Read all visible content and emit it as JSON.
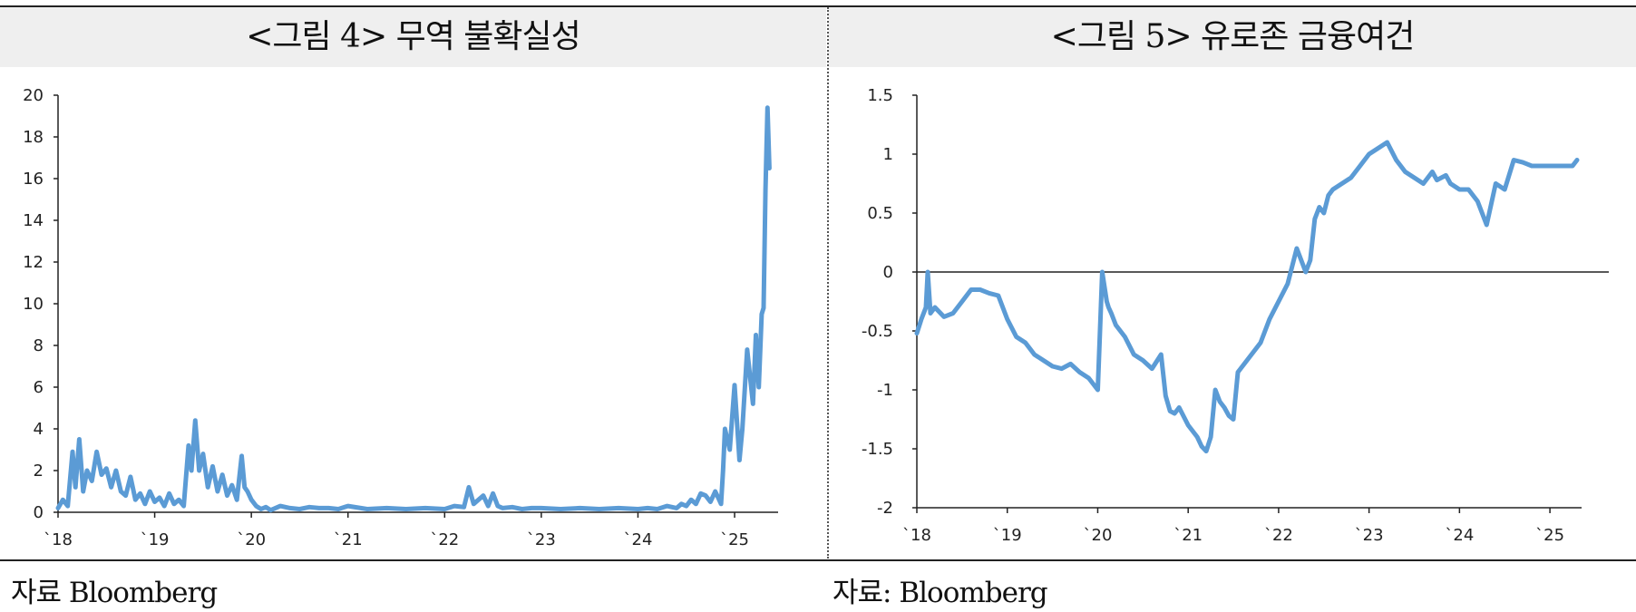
{
  "panels": [
    {
      "title": "<그림 4> 무역 불확실성",
      "source": "자료 Bloomberg"
    },
    {
      "title": "<그림 5> 유로존 금융여건",
      "source": "자료: Bloomberg"
    }
  ],
  "colors": {
    "series": "#5b9bd5",
    "axis": "#222222",
    "band": "#efefef"
  },
  "chart_data": [
    {
      "type": "line",
      "title": "<그림 4> 무역 불확실성",
      "xlabel": "",
      "ylabel": "",
      "x_tick_labels": [
        "`18",
        "`19",
        "`20",
        "`21",
        "`22",
        "`23",
        "`24",
        "`25"
      ],
      "x_tick_values": [
        2018,
        2019,
        2020,
        2021,
        2022,
        2023,
        2024,
        2025
      ],
      "y_ticks": [
        0,
        2,
        4,
        6,
        8,
        10,
        12,
        14,
        16,
        18,
        20
      ],
      "xlim": [
        2018,
        2025.45
      ],
      "ylim": [
        0,
        20
      ],
      "grid": false,
      "series": [
        {
          "x": [
            2018.0,
            2018.05,
            2018.1,
            2018.15,
            2018.18,
            2018.22,
            2018.26,
            2018.3,
            2018.35,
            2018.4,
            2018.45,
            2018.5,
            2018.55,
            2018.6,
            2018.65,
            2018.7,
            2018.75,
            2018.8,
            2018.85,
            2018.9,
            2018.95,
            2019.0,
            2019.05,
            2019.1,
            2019.15,
            2019.2,
            2019.25,
            2019.3,
            2019.35,
            2019.38,
            2019.42,
            2019.46,
            2019.5,
            2019.55,
            2019.6,
            2019.65,
            2019.7,
            2019.75,
            2019.8,
            2019.85,
            2019.9,
            2019.93,
            2019.96,
            2020.0,
            2020.05,
            2020.1,
            2020.15,
            2020.2,
            2020.3,
            2020.4,
            2020.5,
            2020.6,
            2020.7,
            2020.8,
            2020.9,
            2021.0,
            2021.2,
            2021.4,
            2021.6,
            2021.8,
            2022.0,
            2022.1,
            2022.2,
            2022.25,
            2022.3,
            2022.4,
            2022.45,
            2022.5,
            2022.55,
            2022.6,
            2022.7,
            2022.8,
            2022.9,
            2023.0,
            2023.2,
            2023.4,
            2023.6,
            2023.8,
            2024.0,
            2024.1,
            2024.2,
            2024.3,
            2024.4,
            2024.45,
            2024.5,
            2024.55,
            2024.6,
            2024.65,
            2024.7,
            2024.75,
            2024.8,
            2024.84,
            2024.86,
            2024.88,
            2024.9,
            2024.95,
            2025.0,
            2025.05,
            2025.08,
            2025.1,
            2025.13,
            2025.16,
            2025.19,
            2025.22,
            2025.25,
            2025.28,
            2025.3,
            2025.32,
            2025.34,
            2025.36
          ],
          "y": [
            0.2,
            0.6,
            0.3,
            2.9,
            1.2,
            3.5,
            1.0,
            2.0,
            1.5,
            2.9,
            1.8,
            2.1,
            1.2,
            2.0,
            1.0,
            0.8,
            1.7,
            0.6,
            0.9,
            0.4,
            1.0,
            0.5,
            0.7,
            0.3,
            0.9,
            0.4,
            0.6,
            0.3,
            3.2,
            2.0,
            4.4,
            2.0,
            2.8,
            1.2,
            2.2,
            1.0,
            1.8,
            0.8,
            1.3,
            0.6,
            2.7,
            1.2,
            1.0,
            0.6,
            0.3,
            0.15,
            0.25,
            0.1,
            0.3,
            0.2,
            0.15,
            0.25,
            0.2,
            0.2,
            0.15,
            0.3,
            0.15,
            0.2,
            0.15,
            0.2,
            0.15,
            0.3,
            0.25,
            1.2,
            0.4,
            0.8,
            0.3,
            0.9,
            0.3,
            0.2,
            0.25,
            0.15,
            0.2,
            0.2,
            0.15,
            0.2,
            0.15,
            0.2,
            0.15,
            0.2,
            0.15,
            0.3,
            0.2,
            0.4,
            0.3,
            0.6,
            0.4,
            0.9,
            0.8,
            0.5,
            1.0,
            0.6,
            0.4,
            2.0,
            4.0,
            3.0,
            6.1,
            2.5,
            4.0,
            5.5,
            7.8,
            6.5,
            5.2,
            8.5,
            6.0,
            9.5,
            9.8,
            15.5,
            19.4,
            16.5
          ]
        }
      ]
    },
    {
      "type": "line",
      "title": "<그림 5> 유로존 금융여건",
      "xlabel": "",
      "ylabel": "",
      "x_tick_labels": [
        "`18",
        "`19",
        "`20",
        "`21",
        "`22",
        "`23",
        "`24",
        "`25"
      ],
      "x_tick_values": [
        2018,
        2019,
        2020,
        2021,
        2022,
        2023,
        2024,
        2025
      ],
      "y_tick_labels": [
        "1.5",
        "1",
        "0.5",
        "0",
        "-0.5",
        "-1",
        "-1.5",
        "-2"
      ],
      "y_ticks": [
        1.5,
        1,
        0.5,
        0,
        -0.5,
        -1,
        -1.5,
        -2
      ],
      "xlim": [
        2018,
        2025.35
      ],
      "ylim": [
        -2,
        1.5
      ],
      "zero_line": true,
      "grid": false,
      "series": [
        {
          "x": [
            2018.0,
            2018.05,
            2018.1,
            2018.12,
            2018.15,
            2018.2,
            2018.3,
            2018.4,
            2018.5,
            2018.6,
            2018.7,
            2018.8,
            2018.9,
            2019.0,
            2019.1,
            2019.2,
            2019.3,
            2019.4,
            2019.5,
            2019.6,
            2019.7,
            2019.8,
            2019.9,
            2020.0,
            2020.05,
            2020.1,
            2020.12,
            2020.15,
            2020.2,
            2020.3,
            2020.4,
            2020.5,
            2020.6,
            2020.7,
            2020.75,
            2020.8,
            2020.85,
            2020.9,
            2021.0,
            2021.1,
            2021.15,
            2021.2,
            2021.25,
            2021.3,
            2021.35,
            2021.4,
            2021.45,
            2021.5,
            2021.55,
            2021.6,
            2021.65,
            2021.7,
            2021.8,
            2021.9,
            2022.0,
            2022.1,
            2022.2,
            2022.3,
            2022.35,
            2022.4,
            2022.45,
            2022.5,
            2022.55,
            2022.6,
            2022.7,
            2022.8,
            2022.9,
            2023.0,
            2023.1,
            2023.2,
            2023.3,
            2023.4,
            2023.5,
            2023.6,
            2023.7,
            2023.75,
            2023.8,
            2023.85,
            2023.9,
            2024.0,
            2024.1,
            2024.2,
            2024.3,
            2024.4,
            2024.5,
            2024.6,
            2024.7,
            2024.8,
            2024.9,
            2025.0,
            2025.05,
            2025.1,
            2025.15,
            2025.2,
            2025.25,
            2025.3
          ],
          "y": [
            -0.52,
            -0.4,
            -0.3,
            0.0,
            -0.35,
            -0.3,
            -0.38,
            -0.35,
            -0.25,
            -0.15,
            -0.15,
            -0.18,
            -0.2,
            -0.4,
            -0.55,
            -0.6,
            -0.7,
            -0.75,
            -0.8,
            -0.82,
            -0.78,
            -0.85,
            -0.9,
            -1.0,
            0.0,
            -0.25,
            -0.3,
            -0.35,
            -0.45,
            -0.55,
            -0.7,
            -0.75,
            -0.82,
            -0.7,
            -1.05,
            -1.18,
            -1.2,
            -1.15,
            -1.3,
            -1.4,
            -1.48,
            -1.52,
            -1.4,
            -1.0,
            -1.1,
            -1.15,
            -1.22,
            -1.25,
            -0.85,
            -0.8,
            -0.75,
            -0.7,
            -0.6,
            -0.4,
            -0.25,
            -0.1,
            0.2,
            0.0,
            0.1,
            0.45,
            0.55,
            0.5,
            0.65,
            0.7,
            0.75,
            0.8,
            0.9,
            1.0,
            1.05,
            1.1,
            0.95,
            0.85,
            0.8,
            0.75,
            0.85,
            0.78,
            0.8,
            0.82,
            0.75,
            0.7,
            0.7,
            0.6,
            0.4,
            0.75,
            0.7,
            0.95,
            0.93,
            0.9,
            0.9,
            0.9,
            0.9,
            0.9,
            0.9,
            0.9,
            0.9,
            0.95
          ]
        }
      ]
    }
  ]
}
